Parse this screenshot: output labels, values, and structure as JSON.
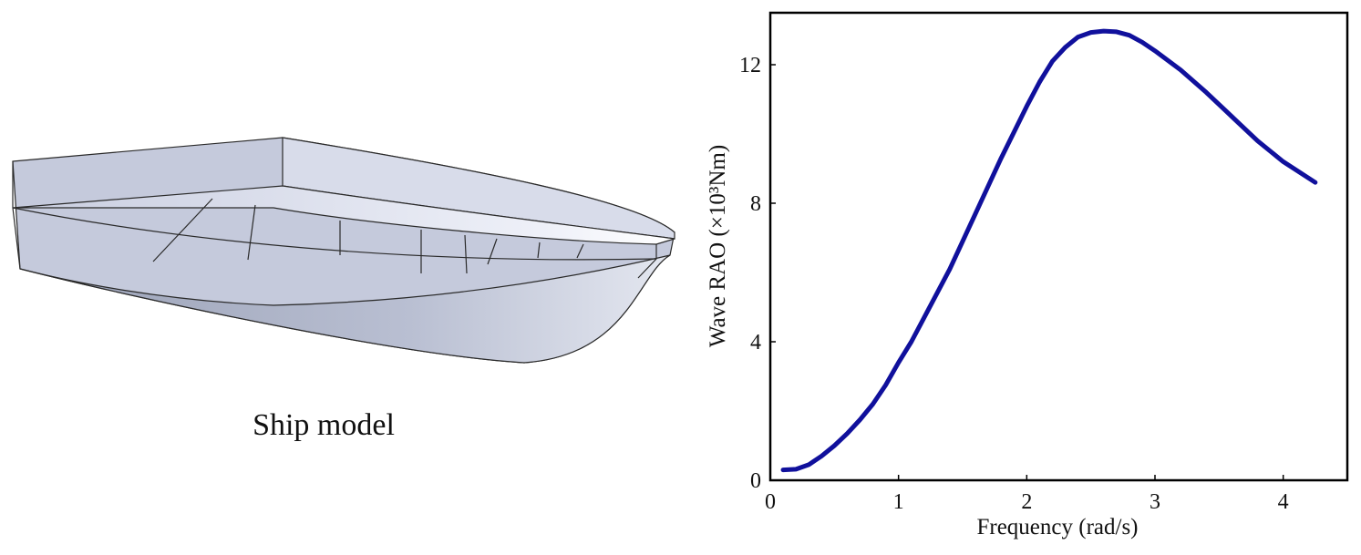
{
  "ship_caption": "Ship model",
  "chart_data": {
    "type": "line",
    "xlabel": "Frequency (rad/s)",
    "ylabel": "Wave RAO (×10³Nm)",
    "x": [
      0.1,
      0.2,
      0.3,
      0.4,
      0.5,
      0.6,
      0.7,
      0.8,
      0.9,
      1.0,
      1.1,
      1.2,
      1.3,
      1.4,
      1.5,
      1.6,
      1.7,
      1.8,
      1.9,
      2.0,
      2.1,
      2.2,
      2.3,
      2.4,
      2.5,
      2.6,
      2.7,
      2.8,
      2.9,
      3.0,
      3.2,
      3.4,
      3.6,
      3.8,
      4.0,
      4.25
    ],
    "series": [
      {
        "color": "#10109c",
        "values": [
          0.3,
          0.32,
          0.45,
          0.7,
          1.0,
          1.35,
          1.75,
          2.2,
          2.75,
          3.4,
          4.0,
          4.7,
          5.4,
          6.1,
          6.9,
          7.7,
          8.5,
          9.3,
          10.05,
          10.8,
          11.5,
          12.1,
          12.5,
          12.8,
          12.93,
          12.97,
          12.95,
          12.85,
          12.65,
          12.4,
          11.85,
          11.2,
          10.5,
          9.8,
          9.2,
          8.6
        ]
      }
    ],
    "xlim": [
      0,
      4.5
    ],
    "xticks": [
      0,
      1,
      2,
      3,
      4
    ],
    "ylim": [
      0,
      13.5
    ],
    "yticks": [
      0,
      4,
      8,
      12
    ],
    "grid": false
  }
}
